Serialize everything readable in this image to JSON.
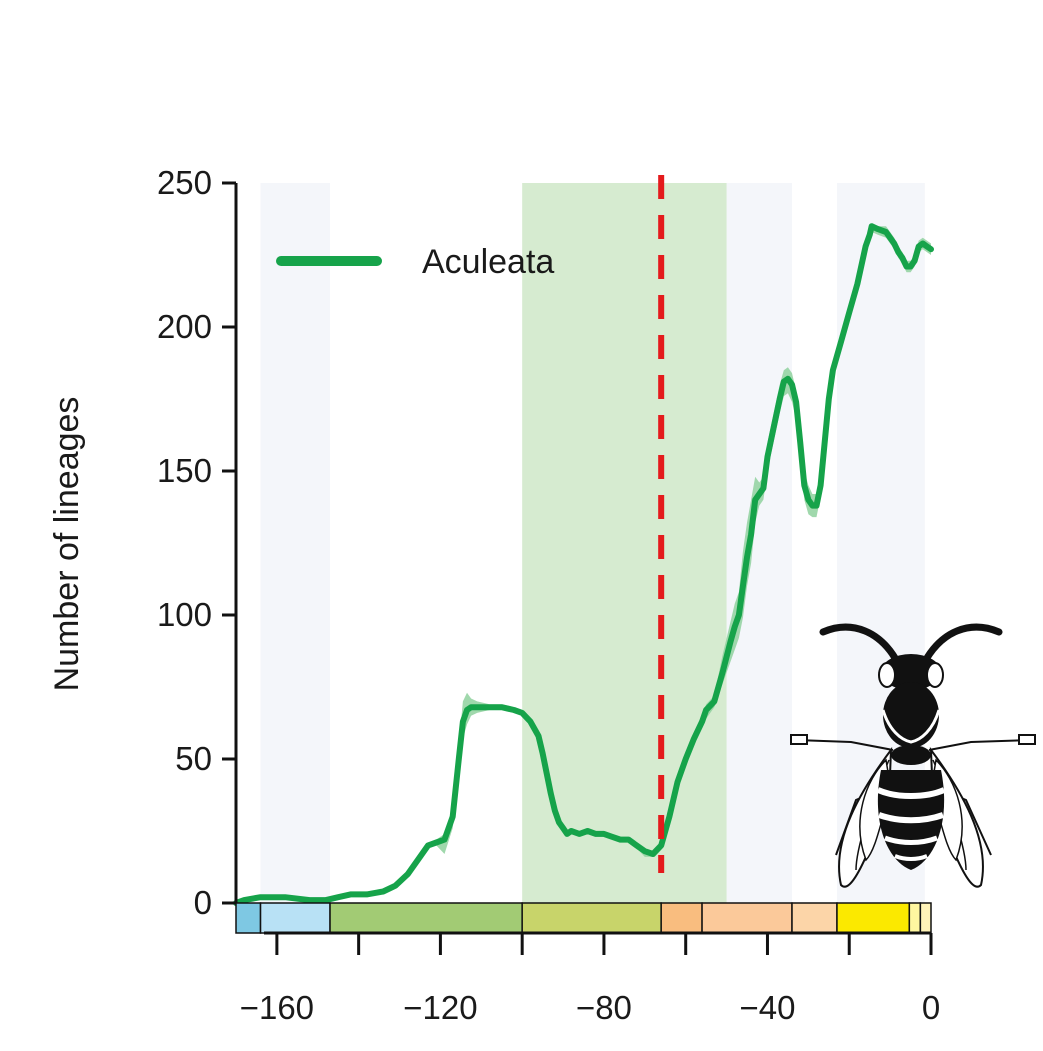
{
  "chart_data": {
    "type": "line",
    "xlim": [
      -170,
      0
    ],
    "ylim": [
      0,
      250
    ],
    "x_ticks": [
      -160,
      -140,
      -120,
      -100,
      -80,
      -60,
      -40,
      -20,
      0
    ],
    "x_tick_labels": [
      "−160",
      "",
      "−120",
      "",
      "−80",
      "",
      "−40",
      "",
      "0"
    ],
    "y_ticks": [
      0,
      50,
      100,
      150,
      200,
      250
    ],
    "y_tick_labels": [
      "0",
      "50",
      "100",
      "150",
      "200",
      "250"
    ],
    "ylabel": "Number of lineages",
    "xlabel": "",
    "legend_position": "top-left",
    "grid": false,
    "event_line": {
      "x": -66,
      "color": "#e41a1c",
      "style": "dashed"
    },
    "highlight_band": {
      "x_range": [
        -100,
        -50
      ],
      "color": "#d6ebd0"
    },
    "faint_bands": [
      {
        "x_range": [
          -164,
          -147
        ],
        "color": "#f4f6fa"
      },
      {
        "x_range": [
          -50,
          -34
        ],
        "color": "#f4f6fa"
      },
      {
        "x_range": [
          -23,
          -1.5
        ],
        "color": "#f4f6fa"
      }
    ],
    "timescale": [
      {
        "from": -170,
        "to": -164,
        "color": "#7ec8e3"
      },
      {
        "from": -164,
        "to": -147,
        "color": "#b8e1f5"
      },
      {
        "from": -147,
        "to": -100,
        "color": "#a2cb74"
      },
      {
        "from": -100,
        "to": -66,
        "color": "#c8d46a"
      },
      {
        "from": -66,
        "to": -56,
        "color": "#f9bd7f"
      },
      {
        "from": -56,
        "to": -34,
        "color": "#fbc99a"
      },
      {
        "from": -34,
        "to": -23,
        "color": "#fcd5a8"
      },
      {
        "from": -23,
        "to": -5.3,
        "color": "#fbe900"
      },
      {
        "from": -5.3,
        "to": -2.6,
        "color": "#fff7a0"
      },
      {
        "from": -2.6,
        "to": 0,
        "color": "#fff3b8"
      }
    ],
    "series": [
      {
        "name": "Aculeata",
        "color": "#16a34a",
        "band_color": "#8fd19e",
        "x": [
          -170,
          -168,
          -164,
          -158,
          -152,
          -148,
          -145,
          -142,
          -138,
          -134,
          -131,
          -128,
          -125,
          -123,
          -121,
          -119,
          -117,
          -115.5,
          -114.5,
          -113.5,
          -112.5,
          -111,
          -108,
          -105,
          -102,
          -100,
          -98,
          -96,
          -95,
          -94,
          -93,
          -92,
          -91,
          -90,
          -89,
          -88,
          -86,
          -84,
          -82,
          -80,
          -78,
          -76,
          -74,
          -72,
          -70,
          -68,
          -66,
          -64,
          -62,
          -60,
          -58,
          -56,
          -55,
          -53,
          -51,
          -49,
          -48,
          -47,
          -46,
          -45,
          -44,
          -43,
          -42,
          -41,
          -40,
          -38.5,
          -37,
          -36,
          -35,
          -34,
          -33,
          -32,
          -31,
          -30,
          -29,
          -28,
          -27,
          -26,
          -25,
          -24,
          -22,
          -20,
          -18,
          -16,
          -15,
          -14.5,
          -13,
          -11,
          -9,
          -8,
          -7,
          -6,
          -5,
          -4,
          -3,
          -2,
          -1,
          0
        ],
        "y": [
          0,
          1,
          2,
          2,
          1,
          1,
          2,
          3,
          3,
          4,
          6,
          10,
          16,
          20,
          21,
          22,
          30,
          50,
          63,
          67,
          68,
          68,
          68,
          68,
          67,
          66,
          63,
          58,
          52,
          45,
          38,
          32,
          28,
          26,
          24,
          25,
          24,
          25,
          24,
          24,
          23,
          22,
          22,
          20,
          18,
          17,
          20,
          30,
          42,
          50,
          57,
          63,
          67,
          70,
          80,
          91,
          96,
          100,
          110,
          120,
          128,
          140,
          142,
          144,
          155,
          165,
          175,
          181,
          182,
          180,
          174,
          160,
          145,
          140,
          138,
          138,
          145,
          160,
          175,
          185,
          195,
          205,
          215,
          228,
          232,
          235,
          234,
          233,
          229,
          226,
          224,
          221,
          221,
          223,
          228,
          229,
          228,
          227
        ],
        "lower": [
          0,
          1,
          2,
          2,
          1,
          1,
          2,
          3,
          3,
          4,
          5,
          9,
          15,
          19,
          20,
          17,
          26,
          44,
          57,
          62,
          65,
          66,
          67,
          67,
          66,
          65,
          62,
          57,
          51,
          44,
          37,
          31,
          27,
          25,
          23,
          24,
          23,
          24,
          23,
          23,
          22,
          21,
          21,
          19,
          16,
          16,
          19,
          28,
          40,
          48,
          55,
          61,
          64,
          68,
          76,
          84,
          88,
          92,
          99,
          110,
          118,
          132,
          138,
          140,
          150,
          160,
          170,
          176,
          177,
          174,
          168,
          154,
          140,
          135,
          134,
          134,
          141,
          156,
          172,
          183,
          193,
          203,
          213,
          226,
          230,
          233,
          232,
          231,
          227,
          224,
          222,
          219,
          219,
          221,
          226,
          227,
          226,
          225
        ],
        "upper": [
          0,
          1,
          2,
          2,
          1,
          1,
          2,
          3,
          3,
          4,
          7,
          11,
          17,
          21,
          22,
          24,
          33,
          55,
          70,
          73,
          71,
          70,
          69,
          69,
          68,
          67,
          64,
          59,
          53,
          46,
          39,
          33,
          29,
          27,
          25,
          26,
          25,
          26,
          25,
          25,
          24,
          23,
          23,
          21,
          19,
          18,
          21,
          32,
          44,
          52,
          59,
          65,
          69,
          72,
          86,
          98,
          104,
          108,
          122,
          132,
          140,
          148,
          146,
          148,
          160,
          170,
          180,
          185,
          186,
          184,
          178,
          164,
          150,
          145,
          142,
          142,
          149,
          164,
          178,
          187,
          197,
          207,
          217,
          230,
          234,
          236,
          235,
          235,
          231,
          228,
          226,
          223,
          223,
          225,
          230,
          231,
          230,
          229
        ]
      }
    ]
  },
  "legend": {
    "label": "Aculeata"
  },
  "icons": {
    "illustration": "wasp-icon"
  }
}
